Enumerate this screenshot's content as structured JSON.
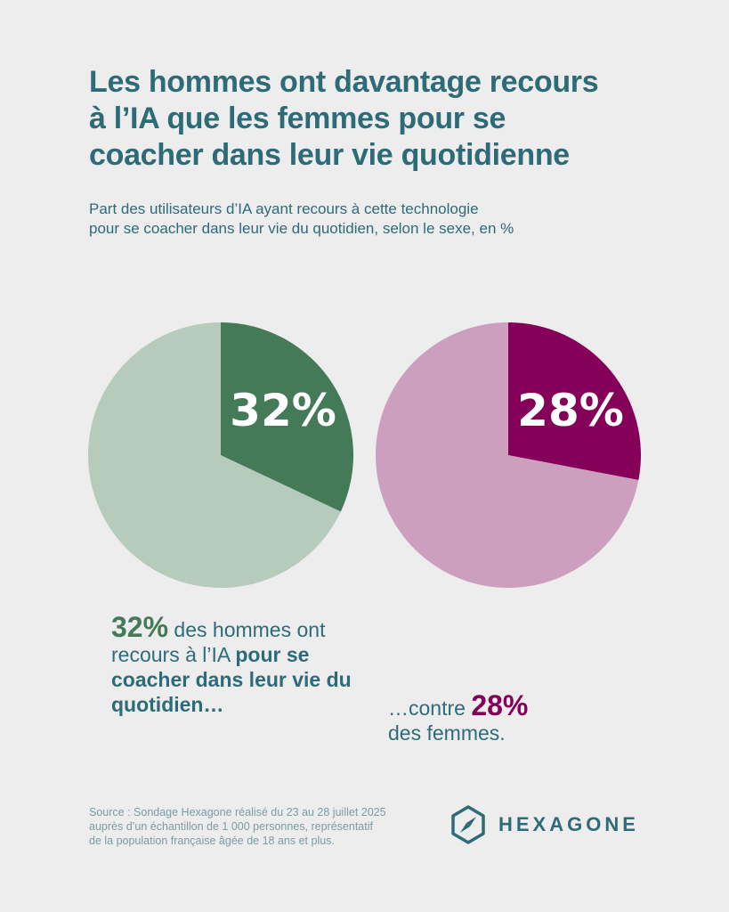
{
  "title": {
    "line1": "Les hommes ont davantage recours",
    "line2": "à l’IA que les femmes pour se",
    "line3": "coacher dans leur vie quotidienne"
  },
  "subtitle": {
    "line1": "Part des utilisateurs d’IA ayant recours à cette technologie",
    "line2": "pour se coacher dans leur vie du quotidien, selon le sexe, en %"
  },
  "chart_data": [
    {
      "type": "pie",
      "categories": [
        "Hommes"
      ],
      "values": [
        32
      ],
      "label": "32%",
      "colors": {
        "highlight": "#447a58",
        "rest": "#b6cbbb"
      }
    },
    {
      "type": "pie",
      "categories": [
        "Femmes"
      ],
      "values": [
        28
      ],
      "label": "28%",
      "colors": {
        "highlight": "#850059",
        "rest": "#cc9fbf"
      }
    }
  ],
  "captions": {
    "men": {
      "value": "32%",
      "text1": " des hommes ont recours à l’IA ",
      "bold": "pour se coacher dans leur vie du quotidien…"
    },
    "women": {
      "prefix": "…contre ",
      "value": "28%",
      "suffix": "des femmes."
    }
  },
  "source": {
    "line1": "Source : Sondage Hexagone réalisé du 23 au 28 juillet 2025",
    "line2": "auprès d’un échantillon de 1 000 personnes, représentatif",
    "line3": "de la population française âgée de 18 ans et plus."
  },
  "logo": {
    "text": "HEXAGONE",
    "icon": "hexagon-compass-icon",
    "color": "#2e6b78"
  }
}
